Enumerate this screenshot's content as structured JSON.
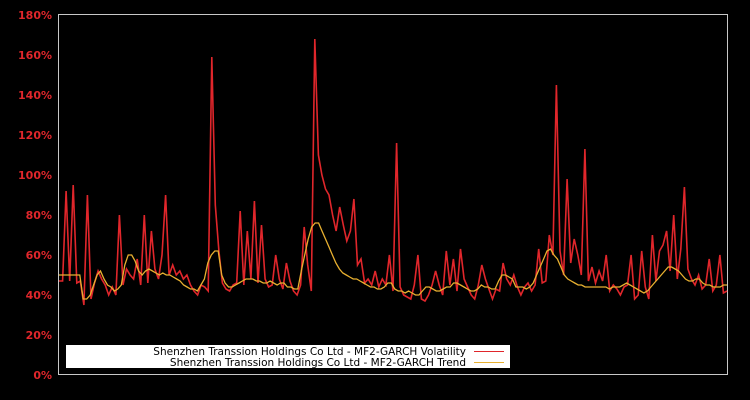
{
  "chart_data": {
    "type": "line",
    "title": "",
    "xlabel": "",
    "ylabel": "",
    "ylim": [
      0,
      180
    ],
    "yticks": [
      "0%",
      "20%",
      "40%",
      "60%",
      "80%",
      "100%",
      "120%",
      "140%",
      "160%",
      "180%"
    ],
    "xticks": [],
    "grid": false,
    "legend_position": "lower-left",
    "background": "#000000",
    "series": [
      {
        "name": "Shenzhen Transsion Holdings Co Ltd - MF2-GARCH Volatility",
        "color": "#e0262b",
        "values": [
          47,
          47,
          92,
          47,
          95,
          46,
          47,
          35,
          90,
          38,
          46,
          52,
          48,
          45,
          40,
          44,
          40,
          80,
          45,
          53,
          50,
          48,
          58,
          45,
          80,
          46,
          72,
          53,
          48,
          60,
          90,
          50,
          55,
          50,
          52,
          48,
          50,
          45,
          42,
          40,
          45,
          44,
          42,
          159,
          85,
          62,
          46,
          43,
          42,
          45,
          46,
          82,
          45,
          72,
          48,
          87,
          46,
          75,
          48,
          44,
          45,
          60,
          48,
          43,
          56,
          47,
          42,
          40,
          45,
          74,
          55,
          42,
          168,
          110,
          100,
          93,
          90,
          80,
          72,
          84,
          75,
          67,
          72,
          88,
          55,
          58,
          46,
          48,
          45,
          52,
          44,
          48,
          45,
          60,
          42,
          116,
          44,
          40,
          39,
          38,
          45,
          60,
          38,
          37,
          40,
          45,
          52,
          45,
          40,
          62,
          45,
          58,
          42,
          63,
          48,
          44,
          40,
          38,
          45,
          55,
          48,
          43,
          38,
          43,
          42,
          56,
          48,
          45,
          50,
          44,
          40,
          44,
          46,
          42,
          45,
          63,
          46,
          47,
          70,
          60,
          145,
          62,
          50,
          98,
          56,
          68,
          60,
          50,
          113,
          47,
          54,
          46,
          52,
          47,
          60,
          42,
          45,
          43,
          40,
          44,
          45,
          60,
          38,
          40,
          62,
          44,
          38,
          70,
          47,
          62,
          65,
          72,
          52,
          80,
          48,
          63,
          94,
          53,
          48,
          45,
          50,
          43,
          45,
          58,
          42,
          45,
          60,
          41,
          42
        ]
      },
      {
        "name": "Shenzhen Transsion Holdings Co Ltd - MF2-GARCH Trend",
        "color": "#e8b030",
        "values": [
          50,
          50,
          50,
          50,
          50,
          50,
          50,
          38,
          38,
          40,
          45,
          50,
          52,
          48,
          45,
          44,
          42,
          43,
          45,
          55,
          60,
          60,
          57,
          52,
          50,
          52,
          53,
          52,
          51,
          50,
          51,
          50,
          50,
          49,
          48,
          47,
          45,
          44,
          43,
          43,
          42,
          45,
          48,
          56,
          60,
          62,
          62,
          50,
          46,
          44,
          44,
          45,
          46,
          47,
          48,
          48,
          48,
          47,
          47,
          46,
          46,
          47,
          46,
          45,
          46,
          46,
          44,
          44,
          43,
          43,
          52,
          60,
          68,
          74,
          76,
          76,
          72,
          68,
          64,
          60,
          56,
          53,
          51,
          50,
          49,
          48,
          48,
          47,
          46,
          45,
          44,
          44,
          43,
          43,
          44,
          46,
          46,
          43,
          42,
          42,
          41,
          42,
          41,
          40,
          40,
          42,
          44,
          44,
          43,
          42,
          42,
          43,
          44,
          44,
          46,
          46,
          45,
          44,
          43,
          42,
          42,
          43,
          45,
          44,
          44,
          43,
          43,
          47,
          50,
          50,
          49,
          48,
          44,
          44,
          44,
          43,
          44,
          46,
          50,
          54,
          58,
          62,
          63,
          60,
          58,
          54,
          50,
          48,
          47,
          46,
          45,
          45,
          44,
          44,
          44,
          44,
          44,
          44,
          44,
          43,
          44,
          44,
          44,
          45,
          46,
          45,
          44,
          43,
          42,
          41,
          42,
          44,
          46,
          48,
          50,
          52,
          54,
          54,
          53,
          52,
          50,
          48,
          47,
          47,
          48,
          48,
          46,
          45,
          45,
          44,
          44,
          44,
          45,
          45
        ]
      }
    ]
  },
  "legend": {
    "items": [
      {
        "label": "Shenzhen Transsion Holdings Co Ltd - MF2-GARCH Volatility",
        "color": "#e0262b"
      },
      {
        "label": "Shenzhen Transsion Holdings Co Ltd - MF2-GARCH Trend",
        "color": "#e8b030"
      }
    ]
  }
}
